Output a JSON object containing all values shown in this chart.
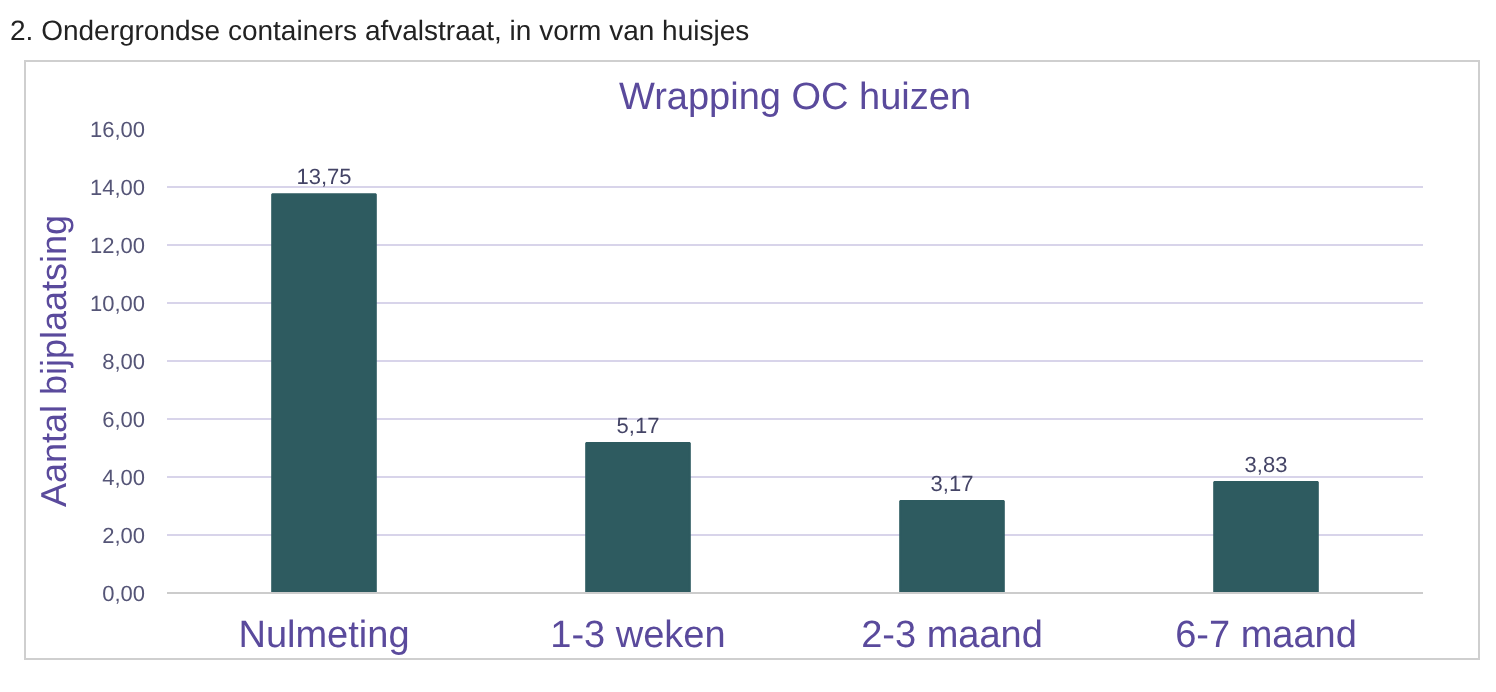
{
  "chart_data": {
    "type": "bar",
    "title": "Wrapping OC huizen",
    "ylabel": "Aantal bijplaatsing",
    "annotations": [
      "2. Ondergrondse containers afvalstraat, in vorm van huisjes"
    ],
    "categories": [
      "Nulmeting",
      "1-3 weken",
      "2-3 maand",
      "6-7 maand"
    ],
    "values": [
      13.75,
      5.17,
      3.17,
      3.83
    ],
    "value_labels": [
      "13,75",
      "5,17",
      "3,17",
      "3,83"
    ],
    "color": "#2e5b60",
    "ylim": [
      0,
      16
    ],
    "yticks": [
      {
        "value": 0,
        "label": "0,00"
      },
      {
        "value": 2,
        "label": "2,00"
      },
      {
        "value": 4,
        "label": "4,00"
      },
      {
        "value": 6,
        "label": "6,00"
      },
      {
        "value": 8,
        "label": "8,00"
      },
      {
        "value": 10,
        "label": "10,00"
      },
      {
        "value": 12,
        "label": "12,00"
      },
      {
        "value": 14,
        "label": "14,00"
      },
      {
        "value": 16,
        "label": "16,00"
      }
    ],
    "grid": "y"
  }
}
